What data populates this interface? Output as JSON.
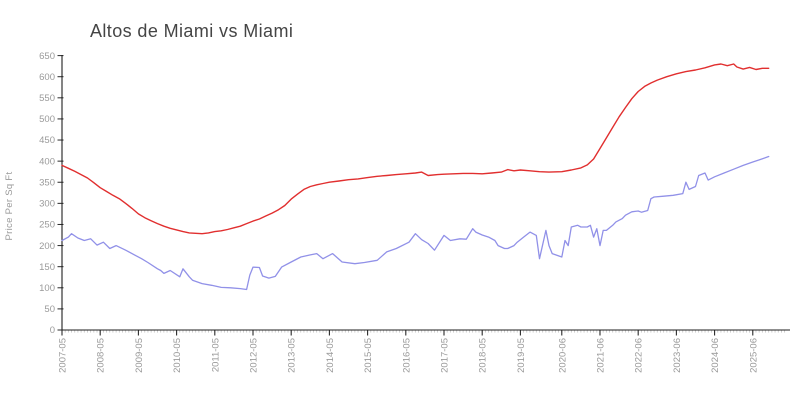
{
  "title": "Altos de Miami vs Miami",
  "chart_data": {
    "type": "line",
    "title": "Altos de Miami vs Miami",
    "xlabel": "",
    "ylabel": "Price Per Sq Ft",
    "ylim": [
      0,
      650
    ],
    "y_tick_step": 50,
    "y_ticks": [
      0,
      50,
      100,
      150,
      200,
      250,
      300,
      350,
      400,
      450,
      500,
      550,
      600,
      650
    ],
    "x_tick_labels": [
      "2007-05",
      "2008-05",
      "2009-05",
      "2010-05",
      "2011-05",
      "2012-05",
      "2013-05",
      "2014-05",
      "2015-05",
      "2016-05",
      "2017-05",
      "2018-05",
      "2019-05",
      "2020-06",
      "2021-06",
      "2022-06",
      "2023-06",
      "2024-06",
      "2025-06"
    ],
    "grid": false,
    "legend_position": "none",
    "series": [
      {
        "name": "Altos de Miami",
        "color": "#e12f2f",
        "points": [
          [
            "2007-05",
            390
          ],
          [
            "2007-07",
            383
          ],
          [
            "2007-09",
            376
          ],
          [
            "2007-11",
            368
          ],
          [
            "2008-01",
            360
          ],
          [
            "2008-03",
            349
          ],
          [
            "2008-05",
            337
          ],
          [
            "2008-07",
            328
          ],
          [
            "2008-09",
            319
          ],
          [
            "2008-11",
            311
          ],
          [
            "2009-01",
            300
          ],
          [
            "2009-03",
            288
          ],
          [
            "2009-05",
            275
          ],
          [
            "2009-07",
            266
          ],
          [
            "2009-09",
            259
          ],
          [
            "2009-11",
            252
          ],
          [
            "2010-01",
            246
          ],
          [
            "2010-03",
            241
          ],
          [
            "2010-05",
            237
          ],
          [
            "2010-07",
            233
          ],
          [
            "2010-09",
            230
          ],
          [
            "2010-11",
            229
          ],
          [
            "2011-01",
            228
          ],
          [
            "2011-03",
            230
          ],
          [
            "2011-05",
            233
          ],
          [
            "2011-07",
            235
          ],
          [
            "2011-09",
            238
          ],
          [
            "2011-11",
            242
          ],
          [
            "2012-01",
            246
          ],
          [
            "2012-03",
            252
          ],
          [
            "2012-05",
            258
          ],
          [
            "2012-07",
            263
          ],
          [
            "2012-09",
            270
          ],
          [
            "2012-11",
            277
          ],
          [
            "2013-01",
            285
          ],
          [
            "2013-03",
            295
          ],
          [
            "2013-05",
            310
          ],
          [
            "2013-07",
            322
          ],
          [
            "2013-09",
            333
          ],
          [
            "2013-11",
            340
          ],
          [
            "2014-01",
            344
          ],
          [
            "2014-03",
            347
          ],
          [
            "2014-05",
            350
          ],
          [
            "2014-08",
            353
          ],
          [
            "2014-11",
            356
          ],
          [
            "2015-02",
            358
          ],
          [
            "2015-05",
            361
          ],
          [
            "2015-08",
            364
          ],
          [
            "2015-11",
            366
          ],
          [
            "2016-02",
            368
          ],
          [
            "2016-05",
            370
          ],
          [
            "2016-08",
            372
          ],
          [
            "2016-10",
            374
          ],
          [
            "2016-12",
            366
          ],
          [
            "2017-03",
            368
          ],
          [
            "2017-05",
            369
          ],
          [
            "2017-08",
            370
          ],
          [
            "2017-11",
            371
          ],
          [
            "2018-02",
            371
          ],
          [
            "2018-05",
            370
          ],
          [
            "2018-08",
            372
          ],
          [
            "2018-11",
            374
          ],
          [
            "2019-01",
            380
          ],
          [
            "2019-03",
            377
          ],
          [
            "2019-05",
            379
          ],
          [
            "2019-08",
            377
          ],
          [
            "2019-11",
            375
          ],
          [
            "2020-02",
            374
          ],
          [
            "2020-06",
            375
          ],
          [
            "2020-09",
            379
          ],
          [
            "2020-12",
            384
          ],
          [
            "2021-02",
            391
          ],
          [
            "2021-04",
            405
          ],
          [
            "2021-06",
            430
          ],
          [
            "2021-08",
            455
          ],
          [
            "2021-10",
            480
          ],
          [
            "2021-12",
            505
          ],
          [
            "2022-02",
            527
          ],
          [
            "2022-04",
            548
          ],
          [
            "2022-06",
            565
          ],
          [
            "2022-08",
            577
          ],
          [
            "2022-10",
            585
          ],
          [
            "2022-12",
            592
          ],
          [
            "2023-03",
            600
          ],
          [
            "2023-06",
            607
          ],
          [
            "2023-09",
            612
          ],
          [
            "2023-12",
            616
          ],
          [
            "2024-03",
            621
          ],
          [
            "2024-06",
            628
          ],
          [
            "2024-08",
            630
          ],
          [
            "2024-10",
            626
          ],
          [
            "2024-12",
            630
          ],
          [
            "2025-01",
            623
          ],
          [
            "2025-03",
            618
          ],
          [
            "2025-05",
            622
          ],
          [
            "2025-07",
            617
          ],
          [
            "2025-09",
            620
          ],
          [
            "2025-11",
            620
          ]
        ]
      },
      {
        "name": "Miami",
        "color": "#9191e8",
        "points": [
          [
            "2007-05",
            212
          ],
          [
            "2007-07",
            220
          ],
          [
            "2007-08",
            228
          ],
          [
            "2007-10",
            218
          ],
          [
            "2007-12",
            212
          ],
          [
            "2008-02",
            216
          ],
          [
            "2008-04",
            201
          ],
          [
            "2008-06",
            208
          ],
          [
            "2008-08",
            193
          ],
          [
            "2008-10",
            200
          ],
          [
            "2009-01",
            189
          ],
          [
            "2009-04",
            177
          ],
          [
            "2009-06",
            169
          ],
          [
            "2009-08",
            160
          ],
          [
            "2009-11",
            145
          ],
          [
            "2009-12",
            141
          ],
          [
            "2010-01",
            134
          ],
          [
            "2010-03",
            141
          ],
          [
            "2010-06",
            126
          ],
          [
            "2010-07",
            145
          ],
          [
            "2010-09",
            126
          ],
          [
            "2010-10",
            118
          ],
          [
            "2011-01",
            110
          ],
          [
            "2011-04",
            106
          ],
          [
            "2011-07",
            101
          ],
          [
            "2011-10",
            100
          ],
          [
            "2012-01",
            98
          ],
          [
            "2012-03",
            96
          ],
          [
            "2012-04",
            130
          ],
          [
            "2012-05",
            149
          ],
          [
            "2012-07",
            148
          ],
          [
            "2012-08",
            128
          ],
          [
            "2012-10",
            123
          ],
          [
            "2012-12",
            127
          ],
          [
            "2013-02",
            149
          ],
          [
            "2013-05",
            161
          ],
          [
            "2013-08",
            173
          ],
          [
            "2013-11",
            178
          ],
          [
            "2014-01",
            181
          ],
          [
            "2014-03",
            169
          ],
          [
            "2014-06",
            181
          ],
          [
            "2014-09",
            161
          ],
          [
            "2015-01",
            157
          ],
          [
            "2015-04",
            160
          ],
          [
            "2015-08",
            165
          ],
          [
            "2015-11",
            185
          ],
          [
            "2016-02",
            193
          ],
          [
            "2016-06",
            208
          ],
          [
            "2016-08",
            228
          ],
          [
            "2016-10",
            214
          ],
          [
            "2016-12",
            205
          ],
          [
            "2017-02",
            189
          ],
          [
            "2017-05",
            224
          ],
          [
            "2017-07",
            212
          ],
          [
            "2017-10",
            216
          ],
          [
            "2017-12",
            215
          ],
          [
            "2018-02",
            240
          ],
          [
            "2018-03",
            232
          ],
          [
            "2018-05",
            225
          ],
          [
            "2018-07",
            220
          ],
          [
            "2018-09",
            212
          ],
          [
            "2018-10",
            200
          ],
          [
            "2018-12",
            193
          ],
          [
            "2019-01",
            193
          ],
          [
            "2019-03",
            200
          ],
          [
            "2019-04",
            208
          ],
          [
            "2019-06",
            220
          ],
          [
            "2019-08",
            232
          ],
          [
            "2019-10",
            224
          ],
          [
            "2019-11",
            169
          ],
          [
            "2020-01",
            236
          ],
          [
            "2020-02",
            200
          ],
          [
            "2020-03",
            181
          ],
          [
            "2020-06",
            173
          ],
          [
            "2020-07",
            212
          ],
          [
            "2020-08",
            200
          ],
          [
            "2020-09",
            244
          ],
          [
            "2020-11",
            248
          ],
          [
            "2020-12",
            244
          ],
          [
            "2021-02",
            244
          ],
          [
            "2021-03",
            248
          ],
          [
            "2021-04",
            220
          ],
          [
            "2021-05",
            240
          ],
          [
            "2021-06",
            200
          ],
          [
            "2021-07",
            236
          ],
          [
            "2021-08",
            236
          ],
          [
            "2021-10",
            248
          ],
          [
            "2021-11",
            256
          ],
          [
            "2022-01",
            264
          ],
          [
            "2022-02",
            272
          ],
          [
            "2022-04",
            280
          ],
          [
            "2022-06",
            282
          ],
          [
            "2022-07",
            279
          ],
          [
            "2022-09",
            283
          ],
          [
            "2022-10",
            311
          ],
          [
            "2022-11",
            315
          ],
          [
            "2023-02",
            317
          ],
          [
            "2023-05",
            319
          ],
          [
            "2023-08",
            323
          ],
          [
            "2023-09",
            350
          ],
          [
            "2023-10",
            333
          ],
          [
            "2023-12",
            340
          ],
          [
            "2024-01",
            366
          ],
          [
            "2024-03",
            372
          ],
          [
            "2024-04",
            355
          ],
          [
            "2024-06",
            363
          ],
          [
            "2024-09",
            372
          ],
          [
            "2024-12",
            381
          ],
          [
            "2025-03",
            390
          ],
          [
            "2025-06",
            398
          ],
          [
            "2025-08",
            403
          ],
          [
            "2025-11",
            411
          ]
        ]
      }
    ],
    "axis_colors": {
      "axis_line": "#1f1f1f",
      "major_tick": "#2a2a2a",
      "minor_tick": "#c4c4c4",
      "tick_label": "#9a9a9a"
    }
  }
}
